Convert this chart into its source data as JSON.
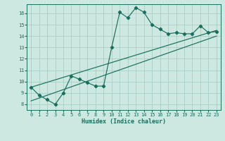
{
  "xlabel": "Humidex (Indice chaleur)",
  "ylabel": "",
  "bg_color": "#cce8e0",
  "grid_color": "#aacfc8",
  "line_color": "#1a6e5e",
  "xlim": [
    -0.5,
    23.5
  ],
  "ylim": [
    7.5,
    16.8
  ],
  "xticks": [
    0,
    1,
    2,
    3,
    4,
    5,
    6,
    7,
    8,
    9,
    10,
    11,
    12,
    13,
    14,
    15,
    16,
    17,
    18,
    19,
    20,
    21,
    22,
    23
  ],
  "yticks": [
    8,
    9,
    10,
    11,
    12,
    13,
    14,
    15,
    16
  ],
  "main_x": [
    0,
    1,
    2,
    3,
    4,
    5,
    6,
    7,
    8,
    9,
    10,
    11,
    12,
    13,
    14,
    15,
    16,
    17,
    18,
    19,
    20,
    21,
    22,
    23
  ],
  "main_y": [
    9.5,
    8.8,
    8.4,
    8.0,
    9.0,
    10.5,
    10.2,
    9.9,
    9.6,
    9.6,
    13.0,
    16.1,
    15.6,
    16.5,
    16.1,
    15.0,
    14.6,
    14.2,
    14.3,
    14.2,
    14.2,
    14.9,
    14.3,
    14.4
  ],
  "line2_x": [
    0,
    23
  ],
  "line2_y": [
    8.3,
    14.0
  ],
  "line3_x": [
    0,
    23
  ],
  "line3_y": [
    9.5,
    14.5
  ]
}
